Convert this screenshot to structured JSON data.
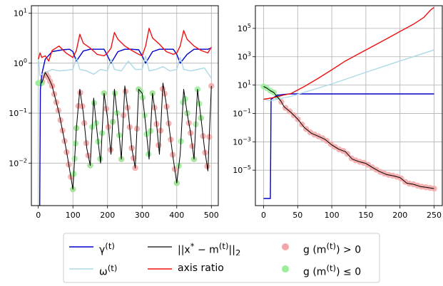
{
  "chart_data": [
    {
      "type": "line",
      "panel": "left",
      "x_ticks": [
        "0",
        "100",
        "200",
        "300",
        "400",
        "500"
      ],
      "y_ticks": [
        "10^1",
        "10^0",
        "10^-1",
        "10^-2"
      ],
      "xlim": [
        -20,
        520
      ],
      "ylim_log10": [
        -2.85,
        1.15
      ],
      "yscale": "log",
      "grid": true,
      "series": [
        {
          "name": "γ(t)",
          "color": "#0000cc",
          "x": [
            0,
            4,
            6,
            10,
            20,
            40,
            70,
            90,
            100,
            110,
            130,
            150,
            170,
            190,
            200,
            210,
            230,
            250,
            270,
            290,
            300,
            310,
            330,
            350,
            370,
            390,
            400,
            410,
            430,
            450,
            470,
            490,
            500
          ],
          "y": [
            0.001,
            0.001,
            0.3,
            0.6,
            1.2,
            1.7,
            1.85,
            1.9,
            1.7,
            1.1,
            1.75,
            1.9,
            1.9,
            1.9,
            1.4,
            1.0,
            1.7,
            1.9,
            1.9,
            1.85,
            1.4,
            1.0,
            1.7,
            1.9,
            1.9,
            1.9,
            1.5,
            1.0,
            1.5,
            1.9,
            1.9,
            1.9,
            2.0
          ]
        },
        {
          "name": "ω(t)",
          "color": "#add8e6",
          "x": [
            0,
            5,
            10,
            20,
            40,
            60,
            80,
            100,
            110,
            120,
            140,
            160,
            180,
            200,
            210,
            220,
            240,
            260,
            280,
            300,
            310,
            320,
            340,
            360,
            380,
            400,
            410,
            420,
            440,
            460,
            480,
            500
          ],
          "y": [
            1.3,
            0.55,
            0.6,
            0.65,
            0.75,
            0.7,
            0.72,
            0.75,
            1.3,
            0.75,
            0.7,
            0.6,
            0.75,
            0.7,
            1.2,
            0.75,
            0.7,
            1.1,
            0.75,
            0.75,
            1.4,
            0.7,
            0.75,
            0.85,
            0.7,
            0.75,
            1.3,
            0.75,
            0.7,
            0.75,
            0.8,
            0.5
          ]
        },
        {
          "name": "axis ratio",
          "color": "#ee1111",
          "x": [
            0,
            5,
            10,
            20,
            30,
            40,
            60,
            80,
            100,
            110,
            120,
            130,
            150,
            170,
            190,
            200,
            210,
            220,
            230,
            250,
            270,
            290,
            300,
            310,
            320,
            330,
            350,
            370,
            390,
            400,
            410,
            420,
            430,
            450,
            470,
            490,
            500
          ],
          "y": [
            1.2,
            1.6,
            1.3,
            1.4,
            1.1,
            1.8,
            2.2,
            1.6,
            1.3,
            1.8,
            3.8,
            2.5,
            2.0,
            1.5,
            1.4,
            1.6,
            2.0,
            4.1,
            3.0,
            2.2,
            1.8,
            1.5,
            1.4,
            2.2,
            5.0,
            3.2,
            2.4,
            1.7,
            1.5,
            1.6,
            2.2,
            4.5,
            3.0,
            2.2,
            1.8,
            1.6,
            2.1
          ]
        },
        {
          "name": "||x* − m(t)||2",
          "color": "#000000",
          "x": [
            10,
            20,
            30,
            40,
            60,
            80,
            100,
            110,
            120,
            130,
            140,
            150,
            160,
            170,
            180,
            190,
            200,
            210,
            220,
            230,
            240,
            250,
            260,
            270,
            280,
            290,
            300,
            310,
            320,
            330,
            340,
            350,
            360,
            370,
            380,
            390,
            400,
            410,
            420,
            430,
            440,
            450,
            460,
            470,
            480,
            490,
            500
          ],
          "y": [
            0.4,
            0.65,
            0.5,
            0.35,
            0.1,
            0.02,
            0.003,
            0.05,
            0.3,
            0.1,
            0.02,
            0.009,
            0.2,
            0.04,
            0.01,
            0.25,
            0.08,
            0.015,
            0.3,
            0.07,
            0.012,
            0.35,
            0.1,
            0.02,
            0.008,
            0.3,
            0.25,
            0.06,
            0.012,
            0.25,
            0.08,
            0.015,
            0.4,
            0.15,
            0.04,
            0.012,
            0.004,
            0.015,
            0.3,
            0.1,
            0.04,
            0.012,
            0.3,
            0.08,
            0.02,
            0.007,
            0.35
          ]
        },
        {
          "name": "g(m(t)) > 0",
          "color": "#f4a6a6",
          "marker": "circle",
          "segments_x": [
            [
              0,
              40
            ],
            [
              40,
              100
            ],
            [
              110,
              150
            ],
            [
              190,
              215
            ],
            [
              240,
              270
            ],
            [
              270,
              290
            ],
            [
              330,
              400
            ],
            [
              430,
              450
            ],
            [
              470,
              500
            ]
          ]
        },
        {
          "name": "g(m(t)) ≤ 0",
          "color": "#99ee99",
          "marker": "circle",
          "segments_x": [
            [
              0,
              10
            ],
            [
              100,
              110
            ],
            [
              150,
              190
            ],
            [
              215,
              240
            ],
            [
              290,
              330
            ],
            [
              400,
              430
            ],
            [
              450,
              470
            ]
          ]
        }
      ]
    },
    {
      "type": "line",
      "panel": "right",
      "x_ticks": [
        "0",
        "50",
        "100",
        "150",
        "200",
        "250"
      ],
      "y_ticks": [
        "10^5",
        "10^3",
        "10^1",
        "10^-1",
        "10^-3",
        "10^-5"
      ],
      "xlim": [
        -12,
        262
      ],
      "ylim_log10": [
        -7.5,
        6.6
      ],
      "yscale": "log",
      "grid": true,
      "series": [
        {
          "name": "γ(t)",
          "color": "#0000cc",
          "x": [
            0,
            8,
            10,
            11,
            20,
            30,
            40,
            250
          ],
          "y": [
            1e-07,
            1e-07,
            1e-07,
            1.0,
            1.9,
            2.2,
            2.4,
            2.4
          ]
        },
        {
          "name": "ω(t)",
          "color": "#add8e6",
          "x": [
            0,
            10,
            20,
            40,
            100,
            150,
            200,
            250
          ],
          "y": [
            1,
            0.8,
            1.0,
            1.6,
            12,
            80,
            500,
            3000
          ]
        },
        {
          "name": "axis ratio",
          "color": "#ee1111",
          "x": [
            0,
            10,
            20,
            30,
            40,
            60,
            80,
            100,
            120,
            150,
            180,
            200,
            220,
            235,
            245,
            250
          ],
          "y": [
            1,
            1.2,
            1.5,
            2.0,
            2.5,
            8,
            30,
            120,
            500,
            3000,
            18000,
            60000,
            200000,
            600000,
            2000000,
            3000000
          ]
        },
        {
          "name": "||x* − m(t)||2",
          "color": "#000000",
          "x": [
            0,
            5,
            10,
            15,
            20,
            25,
            30,
            40,
            50,
            60,
            70,
            80,
            90,
            100,
            110,
            120,
            130,
            140,
            150,
            160,
            170,
            180,
            190,
            200,
            210,
            220,
            230,
            240,
            250
          ],
          "y": [
            8,
            6,
            4,
            3,
            1.5,
            0.8,
            0.3,
            0.12,
            0.04,
            0.01,
            0.004,
            0.0025,
            0.0015,
            0.0006,
            0.0003,
            0.0002,
            6e-05,
            4e-05,
            3e-05,
            1.5e-05,
            8e-06,
            5e-06,
            4e-06,
            3e-06,
            1.2e-06,
            1e-06,
            7e-07,
            6e-07,
            5e-07
          ]
        },
        {
          "name": "g(m(t)) > 0",
          "color": "#f4a6a6",
          "marker": "circle",
          "segments_x": [
            [
              20,
              250
            ]
          ]
        },
        {
          "name": "g(m(t)) ≤ 0",
          "color": "#99ee99",
          "marker": "circle",
          "segments_x": [
            [
              0,
              20
            ]
          ]
        }
      ]
    }
  ],
  "legend": {
    "items": [
      {
        "label_html": "γ<sup>(t)</sup>",
        "text": "γ(t)",
        "kind": "line",
        "color": "#0000cc"
      },
      {
        "label_html": "ω<sup>(t)</sup>",
        "text": "ω(t)",
        "kind": "line",
        "color": "#add8e6"
      },
      {
        "label_html": "||x<sup>*</sup> − m<sup>(t)</sup>||<sub>2</sub>",
        "text": "||x* − m(t)||2",
        "kind": "line",
        "color": "#333333"
      },
      {
        "label_html": "axis ratio",
        "text": "axis ratio",
        "kind": "line",
        "color": "#ee1111"
      },
      {
        "label_html": "g (m<sup>(t)</sup>) > 0",
        "text": "g (m(t)) > 0",
        "kind": "dot",
        "color": "#f4a6a6"
      },
      {
        "label_html": "g (m<sup>(t)</sup>) ≤ 0",
        "text": "g (m(t)) ≤ 0",
        "kind": "dot",
        "color": "#99ee99"
      }
    ]
  }
}
